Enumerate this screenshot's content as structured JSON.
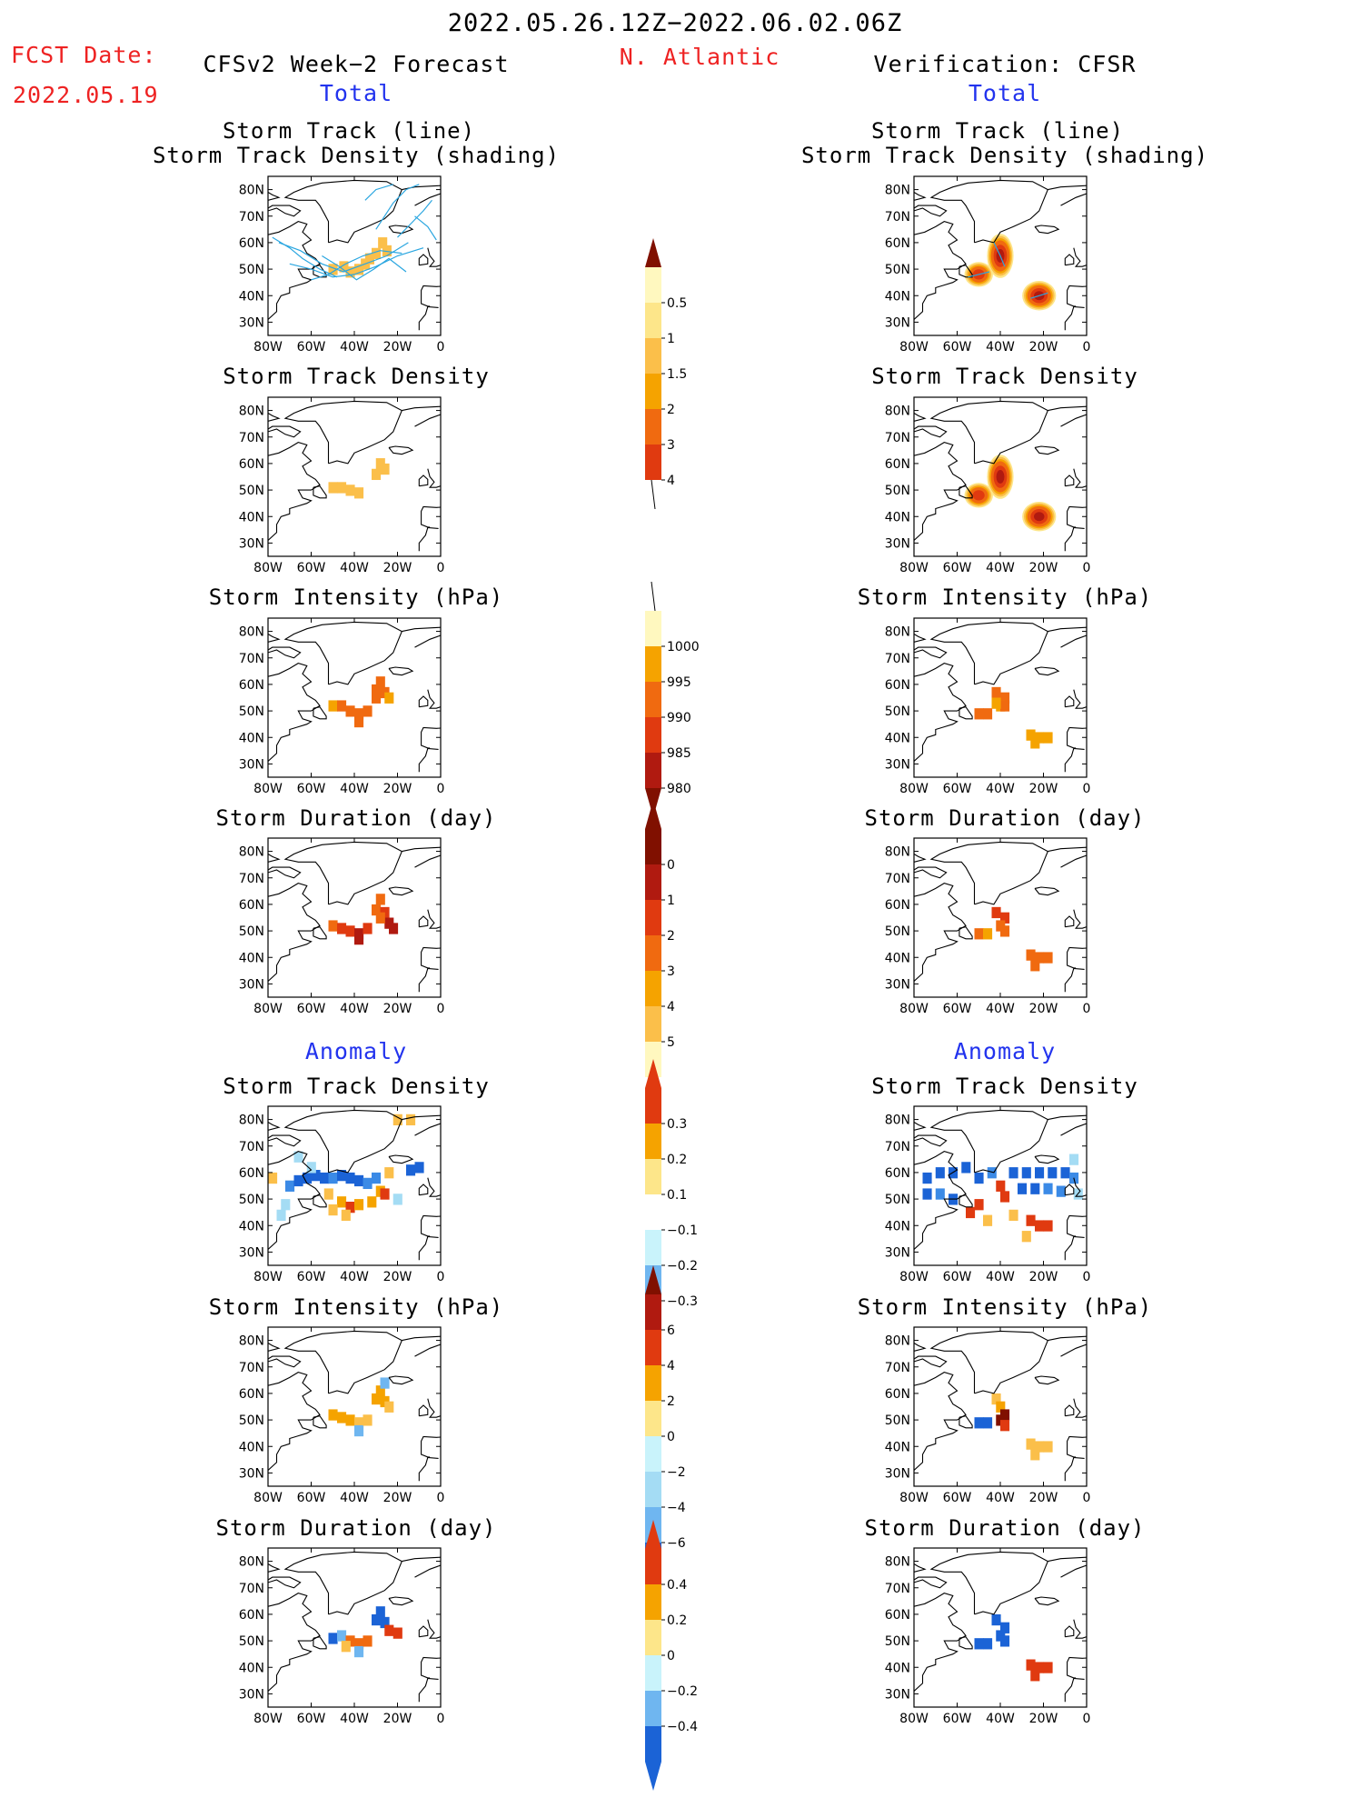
{
  "header": {
    "period": "2022.05.26.12Z−2022.06.02.06Z",
    "fcst_label": "FCST Date:",
    "fcst_date": "2022.05.19",
    "left_title": "CFSv2 Week−2 Forecast",
    "region": "N. Atlantic",
    "right_title": "Verification: CFSR",
    "total_label": "Total",
    "anomaly_label": "Anomaly"
  },
  "panel_titles": {
    "track": [
      "Storm Track (line)",
      "Storm Track Density (shading)"
    ],
    "density": "Storm Track Density",
    "intensity": "Storm Intensity (hPa)",
    "duration": "Storm Duration (day)"
  },
  "axes": {
    "lat_ticks": [
      "30N",
      "40N",
      "50N",
      "60N",
      "70N",
      "80N"
    ],
    "lon_ticks": [
      "80W",
      "60W",
      "40W",
      "20W",
      "0"
    ],
    "lat_range": [
      25,
      85
    ],
    "lon_range": [
      -80,
      0
    ]
  },
  "colorbars": {
    "density": {
      "labels": [
        "0.5",
        "1",
        "1.5",
        "2",
        "3",
        "4"
      ]
    },
    "intensity": {
      "labels": [
        "1000",
        "995",
        "990",
        "985",
        "980"
      ]
    },
    "duration": {
      "labels": [
        "0",
        "1",
        "2",
        "3",
        "4",
        "5"
      ]
    },
    "anom_density": {
      "labels": [
        "0.3",
        "0.2",
        "0.1",
        "−0.1",
        "−0.2",
        "−0.3"
      ]
    },
    "anom_intensity": {
      "labels": [
        "6",
        "4",
        "2",
        "0",
        "−2",
        "−4",
        "−6"
      ]
    },
    "anom_duration": {
      "labels": [
        "0.4",
        "0.2",
        "0",
        "−0.2",
        "−0.4"
      ]
    }
  },
  "colors": {
    "warm": [
      "#fff8bf",
      "#fde68a",
      "#fbbf4a",
      "#f5a300",
      "#f06a10",
      "#e03a10",
      "#b01a10",
      "#801000"
    ],
    "cool": [
      "#c9f3fb",
      "#a4dcf4",
      "#6fb6f0",
      "#3b8ae6",
      "#1b63d6"
    ],
    "track_line": "#2aa6e0"
  },
  "chart_data": [
    {
      "type": "heatmap",
      "side": "forecast",
      "field": "storm track density",
      "lines": "storm tracks",
      "cells": [
        [
          -50,
          50,
          1
        ],
        [
          -45,
          51,
          1
        ],
        [
          -42,
          49,
          1
        ],
        [
          -38,
          50,
          1
        ],
        [
          -35,
          52,
          1
        ],
        [
          -30,
          56,
          1
        ],
        [
          -27,
          60,
          1
        ],
        [
          -25,
          57,
          1
        ],
        [
          -33,
          54,
          1
        ]
      ],
      "tracks": [
        [
          [
            -75,
            60
          ],
          [
            -65,
            57
          ],
          [
            -55,
            52
          ],
          [
            -45,
            49
          ],
          [
            -35,
            52
          ],
          [
            -25,
            55
          ],
          [
            -15,
            60
          ]
        ],
        [
          [
            -70,
            52
          ],
          [
            -60,
            50
          ],
          [
            -50,
            47
          ],
          [
            -40,
            48
          ],
          [
            -30,
            51
          ],
          [
            -20,
            55
          ],
          [
            -8,
            58
          ]
        ],
        [
          [
            -60,
            46
          ],
          [
            -52,
            48
          ],
          [
            -44,
            52
          ],
          [
            -36,
            55
          ],
          [
            -28,
            57
          ],
          [
            -18,
            56
          ]
        ],
        [
          [
            -55,
            55
          ],
          [
            -47,
            51
          ],
          [
            -39,
            46
          ],
          [
            -31,
            50
          ],
          [
            -24,
            54
          ],
          [
            -16,
            49
          ]
        ],
        [
          [
            -30,
            65
          ],
          [
            -26,
            70
          ],
          [
            -22,
            75
          ],
          [
            -16,
            80
          ],
          [
            -10,
            82
          ]
        ],
        [
          [
            -20,
            62
          ],
          [
            -14,
            67
          ],
          [
            -8,
            72
          ],
          [
            -4,
            76
          ]
        ],
        [
          [
            -78,
            62
          ],
          [
            -70,
            58
          ],
          [
            -64,
            54
          ],
          [
            -56,
            50
          ],
          [
            -48,
            47
          ]
        ],
        [
          [
            -35,
            76
          ],
          [
            -30,
            80
          ],
          [
            -22,
            82
          ]
        ],
        [
          [
            -12,
            70
          ],
          [
            -6,
            66
          ],
          [
            -2,
            61
          ]
        ]
      ]
    },
    {
      "type": "heatmap",
      "side": "verification",
      "field": "storm track density",
      "blobs": [
        [
          -50,
          48,
          3.2
        ],
        [
          -40,
          55,
          4.0
        ],
        [
          -22,
          40,
          4.0
        ]
      ],
      "tracks": [
        [
          [
            -55,
            47
          ],
          [
            -50,
            48
          ],
          [
            -45,
            49
          ]
        ],
        [
          [
            -43,
            60
          ],
          [
            -40,
            55
          ],
          [
            -38,
            51
          ]
        ],
        [
          [
            -26,
            39
          ],
          [
            -22,
            40
          ],
          [
            -18,
            41
          ]
        ]
      ]
    },
    {
      "type": "heatmap",
      "side": "forecast",
      "field": "storm track density",
      "cells": [
        [
          -50,
          51,
          1
        ],
        [
          -46,
          51,
          1
        ],
        [
          -42,
          50,
          1
        ],
        [
          -38,
          49,
          1
        ],
        [
          -30,
          56,
          1
        ],
        [
          -28,
          60,
          1
        ],
        [
          -26,
          58,
          1
        ]
      ]
    },
    {
      "type": "heatmap",
      "side": "verification",
      "field": "storm track density",
      "blobs": [
        [
          -50,
          48,
          3.2
        ],
        [
          -40,
          55,
          4.0
        ],
        [
          -22,
          40,
          4.0
        ]
      ]
    },
    {
      "type": "heatmap",
      "side": "forecast",
      "field": "storm intensity (hPa)",
      "cells": [
        [
          -50,
          52,
          995
        ],
        [
          -46,
          52,
          991
        ],
        [
          -42,
          50,
          993
        ],
        [
          -38,
          49,
          991
        ],
        [
          -38,
          46,
          990
        ],
        [
          -34,
          50,
          992
        ],
        [
          -30,
          58,
          994
        ],
        [
          -28,
          61,
          993
        ],
        [
          -26,
          57,
          991
        ],
        [
          -24,
          55,
          995
        ],
        [
          -30,
          55,
          993
        ]
      ]
    },
    {
      "type": "heatmap",
      "side": "verification",
      "field": "storm intensity (hPa)",
      "cells": [
        [
          -50,
          49,
          990
        ],
        [
          -46,
          49,
          990
        ],
        [
          -42,
          57,
          994
        ],
        [
          -38,
          55,
          993
        ],
        [
          -40,
          52,
          995
        ],
        [
          -38,
          52,
          993
        ],
        [
          -42,
          53,
          995
        ],
        [
          -26,
          41,
          999
        ],
        [
          -22,
          40,
          999
        ],
        [
          -18,
          40,
          999
        ],
        [
          -24,
          38,
          999
        ]
      ]
    },
    {
      "type": "heatmap",
      "side": "forecast",
      "field": "storm duration (day)",
      "cells": [
        [
          -50,
          52,
          2.5
        ],
        [
          -46,
          51,
          3.5
        ],
        [
          -42,
          50,
          3.5
        ],
        [
          -38,
          49,
          4.0
        ],
        [
          -38,
          47,
          4.3
        ],
        [
          -34,
          51,
          3.5
        ],
        [
          -30,
          58,
          2.5
        ],
        [
          -28,
          62,
          2.5
        ],
        [
          -26,
          57,
          3.5
        ],
        [
          -24,
          53,
          4.5
        ],
        [
          -22,
          51,
          4.5
        ],
        [
          -28,
          55,
          2.5
        ]
      ]
    },
    {
      "type": "heatmap",
      "side": "verification",
      "field": "storm duration (day)",
      "cells": [
        [
          -50,
          49,
          2.5
        ],
        [
          -46,
          49,
          1.5
        ],
        [
          -42,
          57,
          3.0
        ],
        [
          -38,
          55,
          3.0
        ],
        [
          -40,
          52,
          2.5
        ],
        [
          -38,
          50,
          2.5
        ],
        [
          -26,
          41,
          2.5
        ],
        [
          -22,
          40,
          2.5
        ],
        [
          -18,
          40,
          2.0
        ],
        [
          -24,
          37,
          2.0
        ]
      ]
    },
    {
      "type": "heatmap",
      "side": "forecast",
      "field": "storm track density anomaly",
      "cells": [
        [
          -70,
          55,
          -0.2
        ],
        [
          -66,
          57,
          -0.3
        ],
        [
          -62,
          58,
          -0.3
        ],
        [
          -58,
          59,
          -0.3
        ],
        [
          -54,
          58,
          -0.3
        ],
        [
          -50,
          58,
          -0.25
        ],
        [
          -46,
          59,
          -0.3
        ],
        [
          -42,
          58,
          -0.3
        ],
        [
          -38,
          57,
          -0.3
        ],
        [
          -34,
          56,
          -0.25
        ],
        [
          -30,
          58,
          -0.2
        ],
        [
          -14,
          61,
          -0.3
        ],
        [
          -10,
          62,
          -0.3
        ],
        [
          -72,
          48,
          -0.15
        ],
        [
          -74,
          44,
          -0.15
        ],
        [
          -60,
          62,
          -0.15
        ],
        [
          -66,
          66,
          -0.1
        ],
        [
          -20,
          80,
          0.15
        ],
        [
          -14,
          80,
          0.15
        ],
        [
          -78,
          58,
          0.15
        ],
        [
          -46,
          49,
          0.25
        ],
        [
          -42,
          47,
          0.3
        ],
        [
          -38,
          48,
          0.25
        ],
        [
          -32,
          49,
          0.2
        ],
        [
          -28,
          53,
          0.25
        ],
        [
          -26,
          52,
          0.3
        ],
        [
          -50,
          46,
          0.15
        ],
        [
          -44,
          44,
          0.15
        ],
        [
          -52,
          52,
          0.12
        ],
        [
          -20,
          50,
          -0.1
        ],
        [
          -24,
          60,
          0.15
        ]
      ]
    },
    {
      "type": "heatmap",
      "side": "verification",
      "field": "storm track density anomaly",
      "cells": [
        [
          -74,
          58,
          -0.3
        ],
        [
          -68,
          60,
          -0.3
        ],
        [
          -62,
          60,
          -0.3
        ],
        [
          -56,
          62,
          -0.3
        ],
        [
          -50,
          58,
          -0.3
        ],
        [
          -44,
          60,
          -0.2
        ],
        [
          -34,
          60,
          -0.3
        ],
        [
          -28,
          60,
          -0.3
        ],
        [
          -22,
          60,
          -0.3
        ],
        [
          -16,
          60,
          -0.3
        ],
        [
          -10,
          60,
          -0.3
        ],
        [
          -6,
          58,
          -0.25
        ],
        [
          -74,
          52,
          -0.3
        ],
        [
          -68,
          52,
          -0.25
        ],
        [
          -62,
          50,
          -0.3
        ],
        [
          -30,
          54,
          -0.3
        ],
        [
          -24,
          54,
          -0.3
        ],
        [
          -18,
          54,
          -0.25
        ],
        [
          -12,
          53,
          -0.2
        ],
        [
          -6,
          65,
          -0.15
        ],
        [
          -4,
          52,
          -0.15
        ],
        [
          -54,
          45,
          0.3
        ],
        [
          -50,
          48,
          0.35
        ],
        [
          -40,
          55,
          0.35
        ],
        [
          -38,
          51,
          0.3
        ],
        [
          -22,
          40,
          0.35
        ],
        [
          -26,
          42,
          0.3
        ],
        [
          -18,
          40,
          0.3
        ],
        [
          -46,
          42,
          0.15
        ],
        [
          -34,
          44,
          0.15
        ],
        [
          -28,
          36,
          0.1
        ]
      ]
    },
    {
      "type": "heatmap",
      "side": "forecast",
      "field": "storm intensity anomaly (hPa)",
      "cells": [
        [
          -50,
          52,
          2.5
        ],
        [
          -46,
          51,
          3.5
        ],
        [
          -42,
          50,
          2.5
        ],
        [
          -38,
          49,
          0.5
        ],
        [
          -38,
          46,
          -2.5
        ],
        [
          -34,
          50,
          1.5
        ],
        [
          -30,
          58,
          2.5
        ],
        [
          -28,
          61,
          2.5
        ],
        [
          -26,
          64,
          -3.5
        ],
        [
          -26,
          57,
          2.5
        ],
        [
          -24,
          55,
          1.5
        ]
      ]
    },
    {
      "type": "heatmap",
      "side": "verification",
      "field": "storm intensity anomaly (hPa)",
      "cells": [
        [
          -50,
          49,
          -6.5
        ],
        [
          -46,
          49,
          -6.0
        ],
        [
          -42,
          58,
          1.5
        ],
        [
          -40,
          55,
          3.5
        ],
        [
          -38,
          52,
          6.5
        ],
        [
          -40,
          50,
          7.0
        ],
        [
          -38,
          48,
          5.0
        ],
        [
          -26,
          41,
          1.5
        ],
        [
          -22,
          40,
          1.5
        ],
        [
          -18,
          40,
          1.5
        ],
        [
          -24,
          37,
          0.5
        ]
      ]
    },
    {
      "type": "heatmap",
      "side": "forecast",
      "field": "storm duration anomaly (day)",
      "cells": [
        [
          -50,
          51,
          -0.5
        ],
        [
          -46,
          52,
          -0.25
        ],
        [
          -42,
          50,
          0.25
        ],
        [
          -38,
          49,
          0.3
        ],
        [
          -38,
          46,
          -0.25
        ],
        [
          -34,
          50,
          0.2
        ],
        [
          -30,
          58,
          -0.5
        ],
        [
          -28,
          61,
          -0.5
        ],
        [
          -26,
          57,
          -0.45
        ],
        [
          -24,
          54,
          0.45
        ],
        [
          -20,
          53,
          0.5
        ],
        [
          -44,
          48,
          0.15
        ]
      ]
    },
    {
      "type": "heatmap",
      "side": "verification",
      "field": "storm duration anomaly (day)",
      "cells": [
        [
          -50,
          49,
          -0.5
        ],
        [
          -46,
          49,
          -0.5
        ],
        [
          -42,
          58,
          -0.5
        ],
        [
          -38,
          55,
          -0.5
        ],
        [
          -40,
          52,
          -0.5
        ],
        [
          -38,
          50,
          -0.45
        ],
        [
          -26,
          41,
          0.45
        ],
        [
          -22,
          40,
          0.5
        ],
        [
          -18,
          40,
          0.45
        ],
        [
          -24,
          37,
          0.4
        ]
      ]
    }
  ]
}
